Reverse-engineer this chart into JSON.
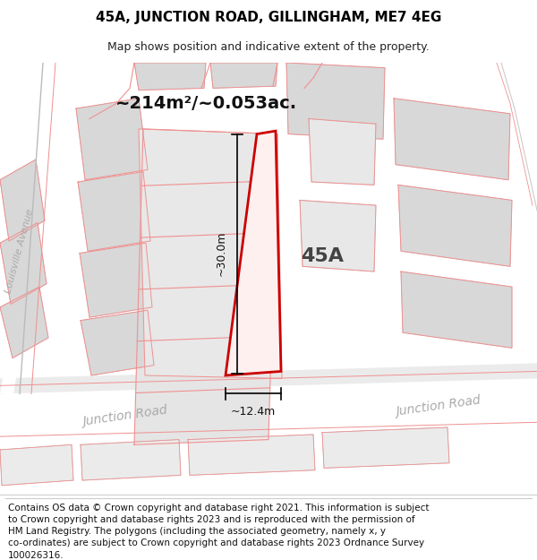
{
  "title_line1": "45A, JUNCTION ROAD, GILLINGHAM, ME7 4EG",
  "title_line2": "Map shows position and indicative extent of the property.",
  "area_label": "~214m²/~0.053ac.",
  "label_45A": "45A",
  "dim_height": "~30.0m",
  "dim_width": "~12.4m",
  "road_label_left": "Junction Road",
  "road_label_right": "Junction Road",
  "street_label_vertical": "Louisville Avenue",
  "footer_text": "Contains OS data © Crown copyright and database right 2021. This information is subject to Crown copyright and database rights 2023 and is reproduced with the permission of HM Land Registry. The polygons (including the associated geometry, namely x, y co-ordinates) are subject to Crown copyright and database rights 2023 Ordnance Survey 100026316.",
  "map_bg": "#f0f0f0",
  "road_white": "#ffffff",
  "bld_gray": "#d8d8d8",
  "bld_edge": "#c8c8c8",
  "red_color": "#cc0000",
  "pink_color": "#f09090",
  "dim_color": "#111111",
  "road_label_color": "#aaaaaa",
  "title1_fontsize": 11,
  "title2_fontsize": 9,
  "area_fontsize": 14,
  "label_fontsize": 16,
  "dim_fontsize": 9,
  "road_fontsize": 10,
  "footer_fontsize": 7.5
}
